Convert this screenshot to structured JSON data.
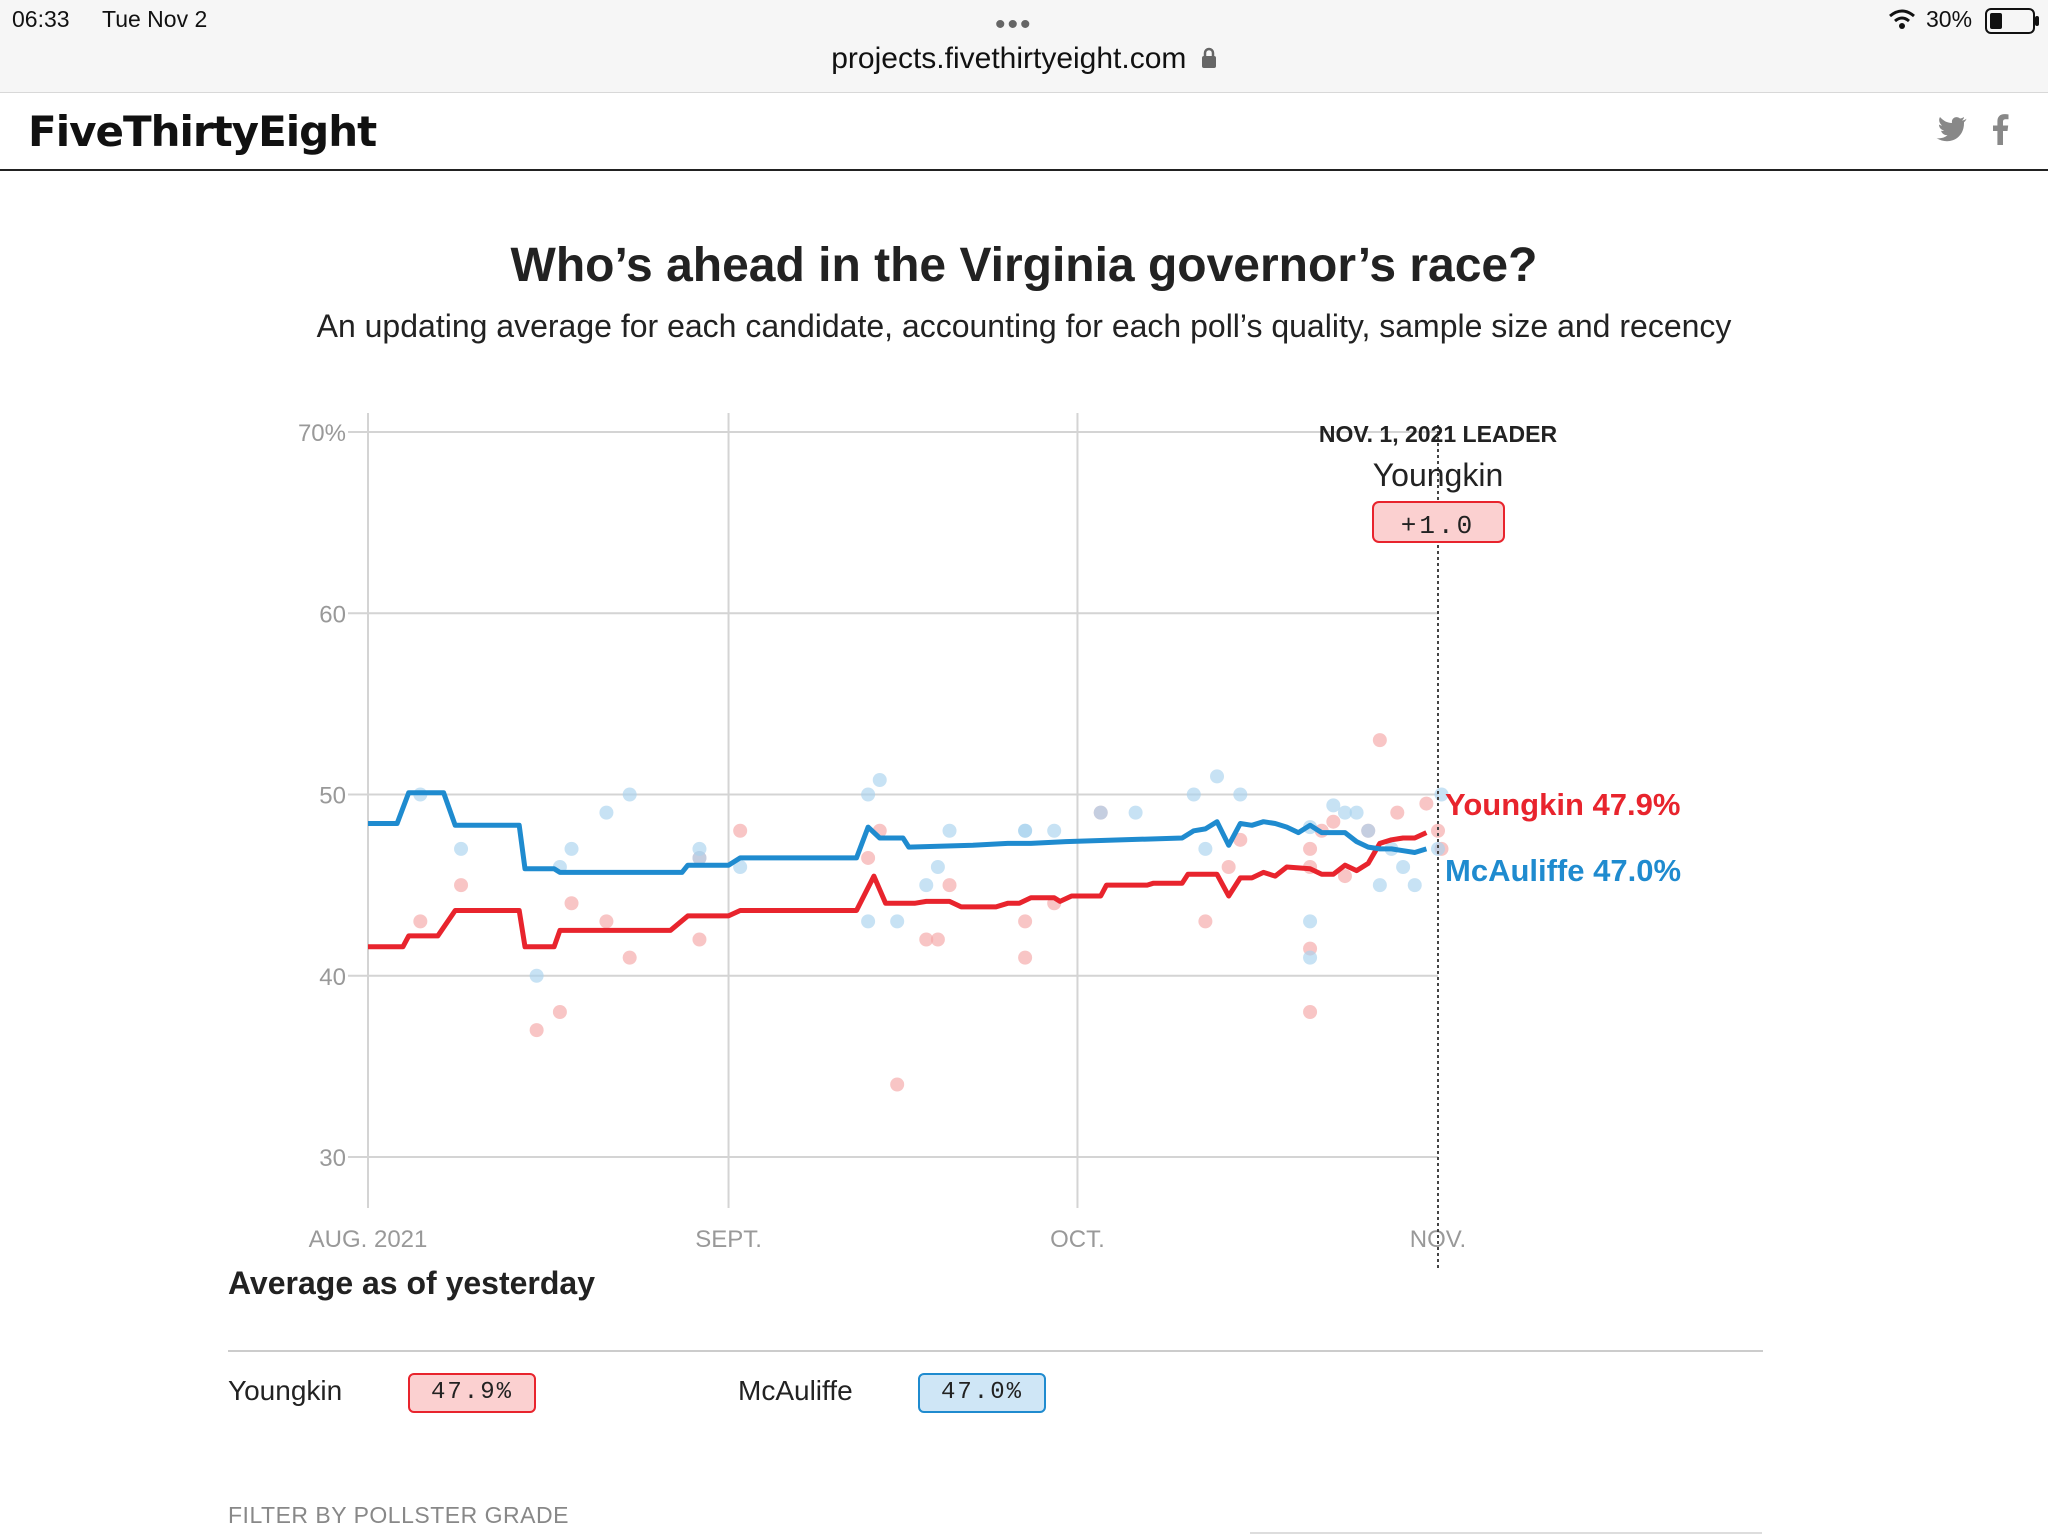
{
  "status_bar": {
    "time": "06:33",
    "date": "Tue Nov 2",
    "url": "projects.fivethirtyeight.com",
    "battery": "30%",
    "battery_level": 0.3
  },
  "site": {
    "logo": "FiveThirtyEight",
    "social": {
      "twitter_icon": "twitter-icon",
      "facebook_icon": "facebook-icon"
    }
  },
  "header": {
    "title": "Who’s ahead in the Virginia governor’s race?",
    "subtitle": "An updating average for each candidate, accounting for each poll’s quality, sample size and recency"
  },
  "leader_box": {
    "label": "NOV. 1, 2021 LEADER",
    "name": "Youngkin",
    "margin": "+1.0"
  },
  "chart_data": {
    "type": "line",
    "title": "",
    "xlabel": "",
    "ylabel": "",
    "ylim": [
      30,
      70
    ],
    "y_ticks": [
      "70%",
      "60",
      "50",
      "40",
      "30"
    ],
    "x_ticks": [
      "AUG. 2021",
      "SEPT.",
      "OCT.",
      "NOV."
    ],
    "x_range_days": [
      0,
      92
    ],
    "series": [
      {
        "name": "Youngkin",
        "end_label": "Youngkin 47.9%",
        "color": "#e8242d",
        "points": [
          [
            0,
            41.6
          ],
          [
            3,
            41.6
          ],
          [
            3.5,
            42.2
          ],
          [
            6,
            42.2
          ],
          [
            7.5,
            43.6
          ],
          [
            13,
            43.6
          ],
          [
            13.5,
            41.6
          ],
          [
            16,
            41.6
          ],
          [
            16.5,
            42.5
          ],
          [
            26,
            42.5
          ],
          [
            27.5,
            43.3
          ],
          [
            31,
            43.3
          ],
          [
            32,
            43.6
          ],
          [
            42,
            43.6
          ],
          [
            43.5,
            45.5
          ],
          [
            44.5,
            44.0
          ],
          [
            47,
            44.0
          ],
          [
            48,
            44.1
          ],
          [
            50,
            44.1
          ],
          [
            51,
            43.8
          ],
          [
            54,
            43.8
          ],
          [
            55,
            44.0
          ],
          [
            56,
            44.0
          ],
          [
            57,
            44.3
          ],
          [
            59,
            44.3
          ],
          [
            59.5,
            44.1
          ],
          [
            60.5,
            44.4
          ],
          [
            63,
            44.4
          ],
          [
            63.5,
            45.0
          ],
          [
            67,
            45.0
          ],
          [
            67.5,
            45.1
          ],
          [
            70,
            45.1
          ],
          [
            70.5,
            45.6
          ],
          [
            73,
            45.6
          ],
          [
            74,
            44.4
          ],
          [
            75,
            45.4
          ],
          [
            76,
            45.4
          ],
          [
            77,
            45.7
          ],
          [
            78,
            45.5
          ],
          [
            79,
            46.0
          ],
          [
            81,
            45.9
          ],
          [
            82,
            45.6
          ],
          [
            83,
            45.6
          ],
          [
            84,
            46.1
          ],
          [
            85,
            45.8
          ],
          [
            86,
            46.2
          ],
          [
            87,
            47.3
          ],
          [
            88,
            47.5
          ],
          [
            89,
            47.6
          ],
          [
            90,
            47.6
          ],
          [
            91,
            47.9
          ]
        ],
        "polls": [
          [
            4.5,
            43
          ],
          [
            8,
            45
          ],
          [
            14.5,
            37
          ],
          [
            16.5,
            38
          ],
          [
            17.5,
            44
          ],
          [
            20.5,
            43
          ],
          [
            22.5,
            41
          ],
          [
            28.5,
            42
          ],
          [
            28.5,
            46.5
          ],
          [
            32,
            48
          ],
          [
            43,
            46.5
          ],
          [
            44,
            48
          ],
          [
            45.5,
            34
          ],
          [
            48,
            42
          ],
          [
            49,
            42
          ],
          [
            50,
            45
          ],
          [
            56.5,
            41
          ],
          [
            56.5,
            43
          ],
          [
            59,
            44
          ],
          [
            63,
            49
          ],
          [
            72,
            43
          ],
          [
            74,
            46
          ],
          [
            75,
            47.5
          ],
          [
            81,
            41.5
          ],
          [
            81,
            46
          ],
          [
            81,
            47
          ],
          [
            81,
            38
          ],
          [
            82,
            48
          ],
          [
            83,
            48.5
          ],
          [
            84,
            45.5
          ],
          [
            86,
            48
          ],
          [
            87,
            53
          ],
          [
            88.5,
            49
          ],
          [
            91,
            49.5
          ],
          [
            92,
            48
          ],
          [
            92.3,
            47
          ]
        ]
      },
      {
        "name": "McAuliffe",
        "end_label": "McAuliffe 47.0%",
        "color": "#1f8bcf",
        "points": [
          [
            0,
            48.4
          ],
          [
            2.5,
            48.4
          ],
          [
            3.5,
            50.1
          ],
          [
            6.5,
            50.1
          ],
          [
            7.5,
            48.3
          ],
          [
            13,
            48.3
          ],
          [
            13.5,
            45.9
          ],
          [
            16,
            45.9
          ],
          [
            16.5,
            45.7
          ],
          [
            24,
            45.7
          ],
          [
            27,
            45.7
          ],
          [
            27.5,
            46.1
          ],
          [
            31,
            46.1
          ],
          [
            32,
            46.5
          ],
          [
            42,
            46.5
          ],
          [
            43,
            48.2
          ],
          [
            44,
            47.6
          ],
          [
            46,
            47.6
          ],
          [
            46.5,
            47.1
          ],
          [
            52,
            47.2
          ],
          [
            55,
            47.3
          ],
          [
            57,
            47.3
          ],
          [
            60,
            47.4
          ],
          [
            65,
            47.5
          ],
          [
            70,
            47.6
          ],
          [
            71,
            48.0
          ],
          [
            72,
            48.1
          ],
          [
            73,
            48.5
          ],
          [
            74,
            47.2
          ],
          [
            75,
            48.4
          ],
          [
            76,
            48.3
          ],
          [
            77,
            48.5
          ],
          [
            78,
            48.4
          ],
          [
            79,
            48.2
          ],
          [
            80,
            47.9
          ],
          [
            81,
            48.3
          ],
          [
            82,
            47.9
          ],
          [
            84,
            47.9
          ],
          [
            85,
            47.4
          ],
          [
            86,
            47.1
          ],
          [
            87,
            47.0
          ],
          [
            88,
            47.0
          ],
          [
            89,
            46.9
          ],
          [
            90,
            46.8
          ],
          [
            91,
            47.0
          ]
        ],
        "polls": [
          [
            4.5,
            50
          ],
          [
            8,
            47
          ],
          [
            14.5,
            40
          ],
          [
            16.5,
            46
          ],
          [
            17.5,
            47
          ],
          [
            20.5,
            49
          ],
          [
            22.5,
            50
          ],
          [
            28.5,
            46.5
          ],
          [
            28.5,
            47
          ],
          [
            32,
            46
          ],
          [
            43,
            50
          ],
          [
            43,
            43
          ],
          [
            44,
            50.8
          ],
          [
            45.5,
            43
          ],
          [
            48,
            45
          ],
          [
            49,
            46
          ],
          [
            50,
            48
          ],
          [
            56.5,
            48
          ],
          [
            56.5,
            48
          ],
          [
            59,
            48
          ],
          [
            63,
            49
          ],
          [
            66,
            49
          ],
          [
            71,
            50
          ],
          [
            72,
            47
          ],
          [
            73,
            51
          ],
          [
            75,
            50
          ],
          [
            81,
            41
          ],
          [
            81,
            43
          ],
          [
            81,
            48.2
          ],
          [
            83,
            49.4
          ],
          [
            84,
            49
          ],
          [
            85,
            49
          ],
          [
            86,
            48
          ],
          [
            87,
            45
          ],
          [
            88,
            47
          ],
          [
            89,
            46
          ],
          [
            90,
            45
          ],
          [
            92,
            47
          ],
          [
            92.3,
            50
          ]
        ]
      }
    ],
    "legend_placement": "end-of-line",
    "grid": true
  },
  "summary": {
    "section_title": "Average as of yesterday",
    "candidates": [
      {
        "name": "Youngkin",
        "value": "47.9%"
      },
      {
        "name": "McAuliffe",
        "value": "47.0%"
      }
    ],
    "filter_label": "FILTER BY POLLSTER GRADE"
  }
}
